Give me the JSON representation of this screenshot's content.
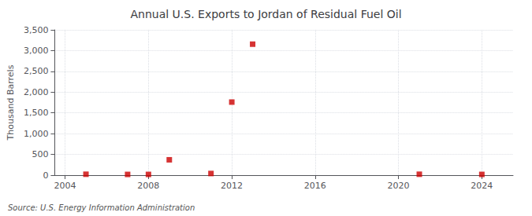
{
  "chart_data": {
    "type": "scatter",
    "title": "Annual U.S. Exports to Jordan of Residual Fuel Oil",
    "ylabel": "Thousand Barrels",
    "annotation": "Source: U.S. Energy Information Administration",
    "x": [
      2005,
      2007,
      2008,
      2009,
      2011,
      2012,
      2013,
      2021,
      2024
    ],
    "values": [
      22,
      18,
      18,
      370,
      40,
      1760,
      3155,
      22,
      18
    ],
    "color": "#cc0000",
    "marker": "square",
    "xlim": [
      2003.5,
      2025.5
    ],
    "xticks": [
      2004,
      2008,
      2012,
      2016,
      2020,
      2024
    ],
    "ylim": [
      0,
      3500
    ],
    "yticks": [
      0,
      500,
      {
        "value": 1000,
        "label": "1,000"
      },
      {
        "value": 1500,
        "label": "1,500"
      },
      {
        "value": 2000,
        "label": "2,000"
      },
      {
        "value": 2500,
        "label": "2,500"
      },
      {
        "value": 3000,
        "label": "3,000"
      },
      {
        "value": 3500,
        "label": "3,500"
      }
    ],
    "grid": true
  }
}
